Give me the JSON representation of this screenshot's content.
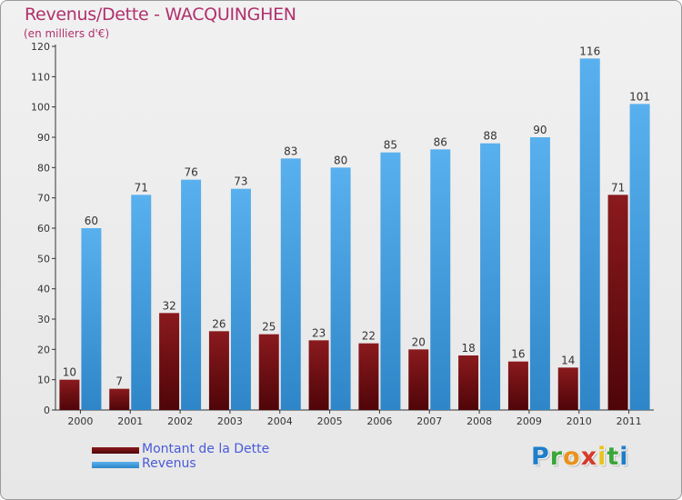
{
  "chart_data": {
    "type": "bar",
    "title": "Revenus/Dette - WACQUINGHEN",
    "subtitle": "(en milliers d'€)",
    "categories": [
      "2000",
      "2001",
      "2002",
      "2003",
      "2004",
      "2005",
      "2006",
      "2007",
      "2008",
      "2009",
      "2010",
      "2011"
    ],
    "series": [
      {
        "name": "Montant de la Dette",
        "color": "#7a0f14",
        "values": [
          10,
          7,
          32,
          26,
          25,
          23,
          22,
          20,
          18,
          16,
          14,
          71
        ]
      },
      {
        "name": "Revenus",
        "color": "#4ba3e3",
        "values": [
          60,
          71,
          76,
          73,
          83,
          80,
          85,
          86,
          88,
          90,
          116,
          101
        ]
      }
    ],
    "ylim": [
      0,
      120
    ],
    "yticks": [
      0,
      10,
      20,
      30,
      40,
      50,
      60,
      70,
      80,
      90,
      100,
      110,
      120
    ],
    "grid": false,
    "legend": "bottom-left"
  },
  "logo": {
    "letters": [
      {
        "char": "P",
        "color": "#1f7ec8"
      },
      {
        "char": "r",
        "color": "#3aa63a"
      },
      {
        "char": "o",
        "color": "#e8921e"
      },
      {
        "char": "x",
        "color": "#d43b2a"
      },
      {
        "char": "i",
        "color": "#e8c21e"
      },
      {
        "char": "t",
        "color": "#3aa63a"
      },
      {
        "char": "i",
        "color": "#1f7ec8"
      }
    ]
  }
}
